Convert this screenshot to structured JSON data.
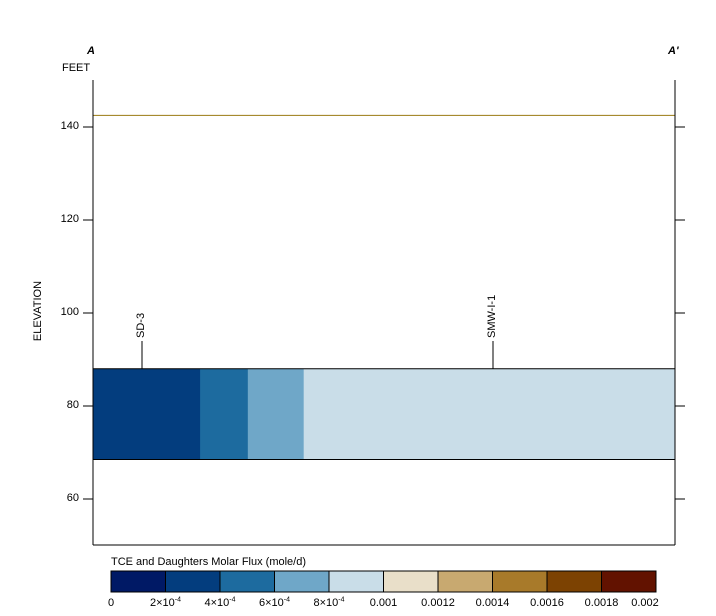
{
  "section": {
    "start_label": "A",
    "end_label": "A'",
    "unit_label": "FEET",
    "y_axis_title": "ELEVATION"
  },
  "chart_data": {
    "type": "cross-section",
    "yaxis": {
      "title": "ELEVATION",
      "unit": "FEET",
      "ylim": [
        50,
        149
      ],
      "ticks": [
        60,
        80,
        100,
        120,
        140
      ]
    },
    "water_level": 142.5,
    "layer": {
      "top": 88,
      "bottom": 68.5
    },
    "wells": [
      {
        "name": "SD-3"
      },
      {
        "name": "SMW-I-1"
      }
    ],
    "flux_segments": [
      {
        "from_frac": 0.0,
        "to_frac": 0.184,
        "color": "#033d7e"
      },
      {
        "from_frac": 0.184,
        "to_frac": 0.266,
        "color": "#1d6b9f"
      },
      {
        "from_frac": 0.266,
        "to_frac": 0.362,
        "color": "#6fa7c8"
      },
      {
        "from_frac": 0.362,
        "to_frac": 1.0,
        "color": "#c9dde8"
      }
    ]
  },
  "legend": {
    "title": "TCE and Daughters Molar Flux (mole/d)",
    "colors": [
      "#001965",
      "#033d7e",
      "#1d6b9f",
      "#6fa7c8",
      "#c9dde8",
      "#e9dfc9",
      "#c8a970",
      "#a87a2a",
      "#7c4202",
      "#621200"
    ],
    "ticks": [
      {
        "mant": "0",
        "exp": ""
      },
      {
        "mant": "2×10",
        "exp": "-4"
      },
      {
        "mant": "4×10",
        "exp": "-4"
      },
      {
        "mant": "6×10",
        "exp": "-4"
      },
      {
        "mant": "8×10",
        "exp": "-4"
      },
      {
        "mant": "0.001",
        "exp": ""
      },
      {
        "mant": "0.0012",
        "exp": ""
      },
      {
        "mant": "0.0014",
        "exp": ""
      },
      {
        "mant": "0.0016",
        "exp": ""
      },
      {
        "mant": "0.0018",
        "exp": ""
      },
      {
        "mant": "0.002",
        "exp": ""
      }
    ]
  }
}
